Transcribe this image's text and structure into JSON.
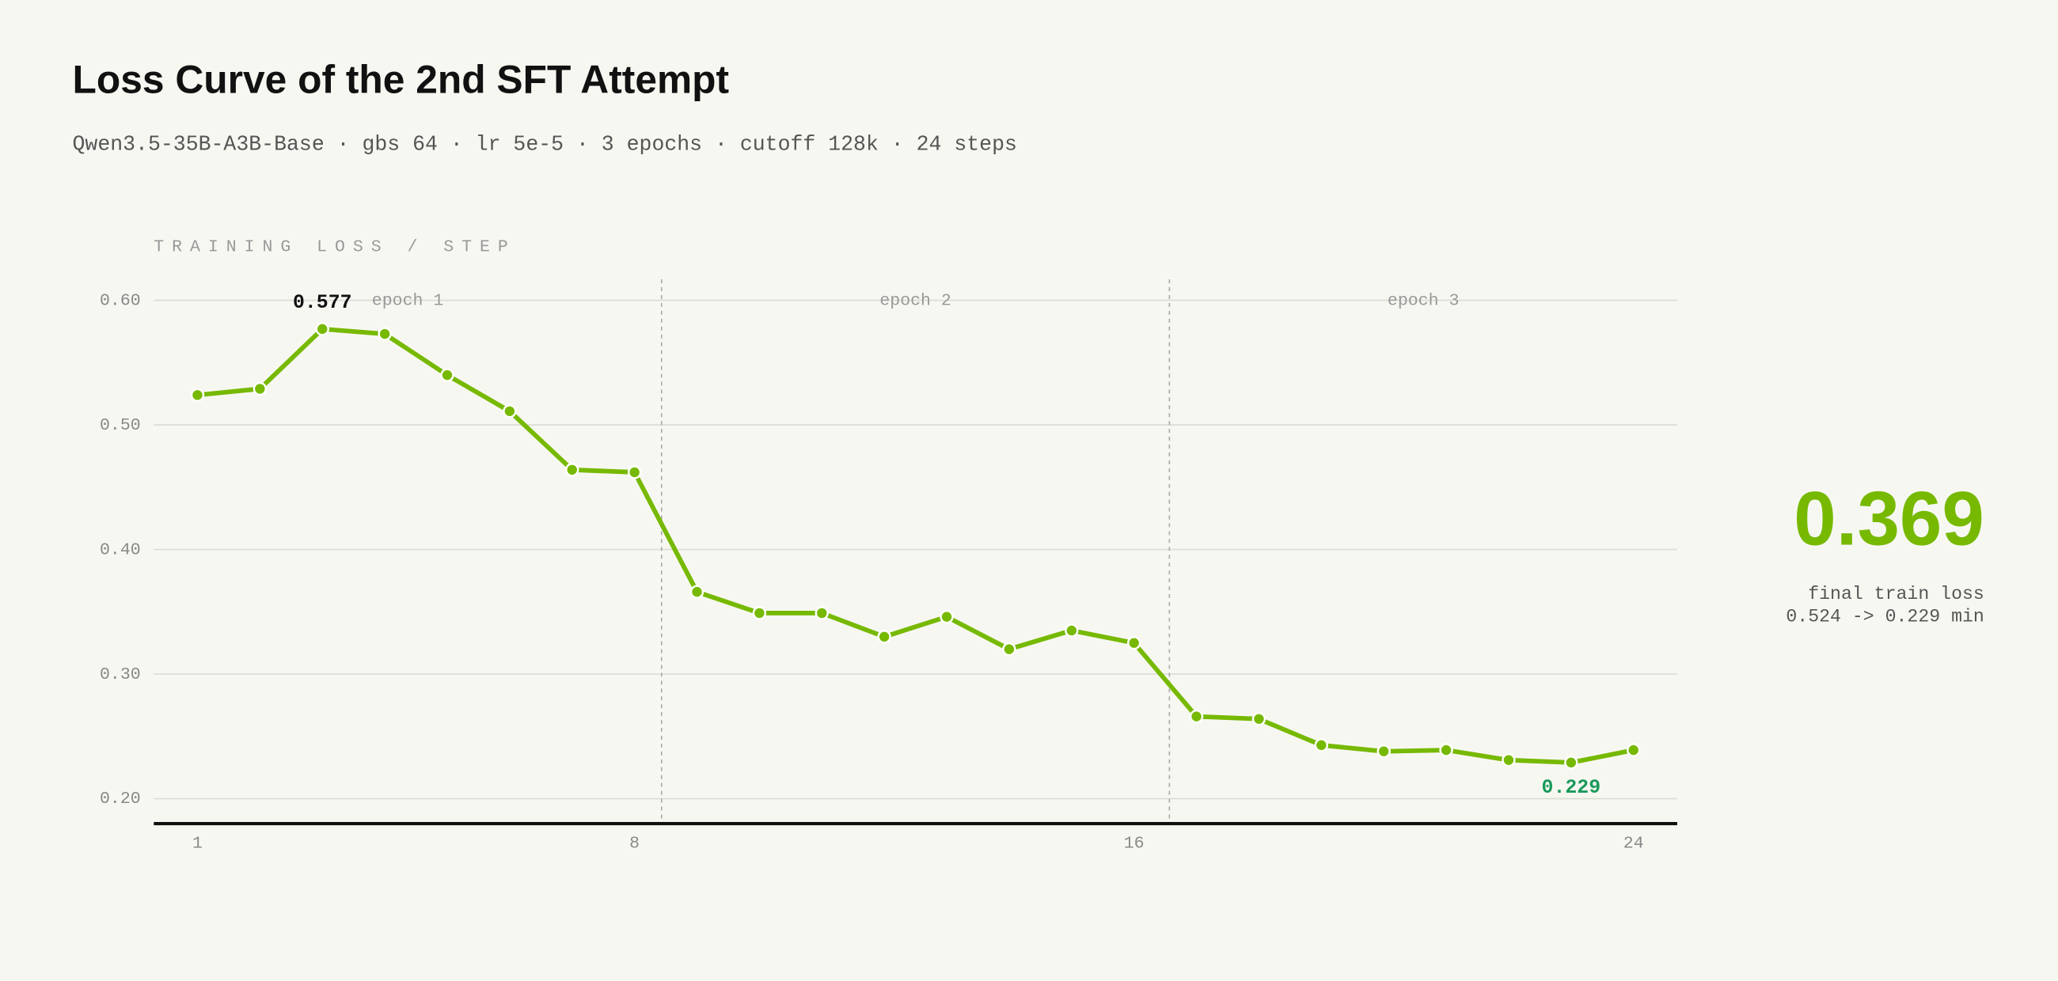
{
  "chart_data": {
    "type": "line",
    "title": "Loss Curve of the 2nd SFT Attempt",
    "subtitle": "Qwen3.5-35B-A3B-Base · gbs 64 · lr 5e-5 · 3 epochs · cutoff 128k · 24 steps",
    "y_axis_label": "TRAINING LOSS / STEP",
    "x": [
      1,
      2,
      3,
      4,
      5,
      6,
      7,
      8,
      9,
      10,
      11,
      12,
      13,
      14,
      15,
      16,
      17,
      18,
      19,
      20,
      21,
      22,
      23,
      24
    ],
    "series": [
      {
        "name": "train loss",
        "color": "#76b900",
        "values": [
          0.524,
          0.529,
          0.577,
          0.573,
          0.54,
          0.511,
          0.464,
          0.462,
          0.366,
          0.349,
          0.349,
          0.33,
          0.346,
          0.32,
          0.335,
          0.325,
          0.266,
          0.264,
          0.243,
          0.238,
          0.239,
          0.231,
          0.229,
          0.239
        ]
      }
    ],
    "epochs": [
      "epoch 1",
      "epoch 2",
      "epoch 3"
    ],
    "xlim": [
      0.3,
      24.7
    ],
    "xticks": [
      1,
      8,
      16,
      24
    ],
    "ylim": [
      0.18,
      0.62
    ],
    "yticks": [
      {
        "value": 0.2,
        "label": "0.20"
      },
      {
        "value": 0.3,
        "label": "0.30"
      },
      {
        "value": 0.4,
        "label": "0.40"
      },
      {
        "value": 0.5,
        "label": "0.50"
      },
      {
        "value": 0.6,
        "label": "0.60"
      }
    ],
    "grid": true,
    "max_label_color": "#111111",
    "min_label_color": "#1a9a5a",
    "summary": {
      "value": "0.369",
      "label": "final train loss",
      "detail": "0.524 -> 0.229 min"
    }
  }
}
